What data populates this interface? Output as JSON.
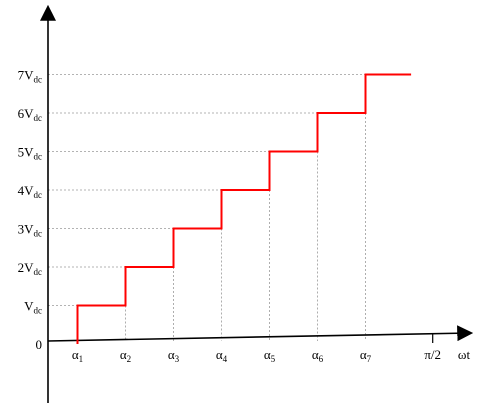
{
  "chart_data": {
    "type": "line",
    "step": true,
    "y_ticks": [
      {
        "value": 0,
        "main": "0",
        "sub": ""
      },
      {
        "value": 1,
        "main": "V",
        "sub": "dc"
      },
      {
        "value": 2,
        "main": "2V",
        "sub": "dc"
      },
      {
        "value": 3,
        "main": "3V",
        "sub": "dc"
      },
      {
        "value": 4,
        "main": "4V",
        "sub": "dc"
      },
      {
        "value": 5,
        "main": "5V",
        "sub": "dc"
      },
      {
        "value": 6,
        "main": "6V",
        "sub": "dc"
      },
      {
        "value": 7,
        "main": "7V",
        "sub": "dc"
      }
    ],
    "x_ticks": [
      {
        "value": 1,
        "main": "α",
        "sub": "1"
      },
      {
        "value": 2,
        "main": "α",
        "sub": "2"
      },
      {
        "value": 3,
        "main": "α",
        "sub": "3"
      },
      {
        "value": 4,
        "main": "α",
        "sub": "4"
      },
      {
        "value": 5,
        "main": "α",
        "sub": "5"
      },
      {
        "value": 6,
        "main": "α",
        "sub": "6"
      },
      {
        "value": 7,
        "main": "α",
        "sub": "7"
      }
    ],
    "x_end_label": "π/2",
    "x_axis_label": "ωt",
    "series": [
      {
        "color": "#ff0000",
        "points": [
          [
            1,
            0
          ],
          [
            1,
            1
          ],
          [
            2,
            1
          ],
          [
            2,
            2
          ],
          [
            3,
            2
          ],
          [
            3,
            3
          ],
          [
            4,
            3
          ],
          [
            4,
            4
          ],
          [
            5,
            4
          ],
          [
            5,
            5
          ],
          [
            6,
            5
          ],
          [
            6,
            6
          ],
          [
            7,
            6
          ],
          [
            7,
            7
          ],
          [
            7.95,
            7
          ]
        ]
      }
    ],
    "x_end_value": 8.4,
    "grid": "dashed guide lines at step corners",
    "guide_color": "#9a9a9a"
  }
}
